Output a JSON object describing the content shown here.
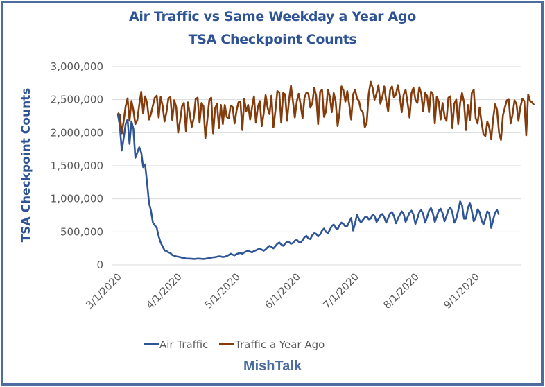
{
  "chart_data": {
    "type": "line",
    "title": "Air Traffic vs Same Weekday a Year Ago",
    "subtitle": "TSA Checkpoint Counts",
    "xlabel": "",
    "ylabel": "TSA Checkpoint Counts",
    "ylim": [
      0,
      3000000
    ],
    "yticks": [
      0,
      500000,
      1000000,
      1500000,
      2000000,
      2500000,
      3000000
    ],
    "ytick_labels": [
      "0",
      "500,000",
      "1,000,000",
      "1,500,000",
      "2,000,000",
      "2,500,000",
      "3,000,000"
    ],
    "xtick_labels": [
      "3/1/2020",
      "4/1/2020",
      "5/1/2020",
      "6/1/2020",
      "7/1/2020",
      "8/1/2020",
      "9/1/2020"
    ],
    "xtick_days": [
      0,
      31,
      61,
      92,
      122,
      153,
      184
    ],
    "x_range_days": [
      0,
      204
    ],
    "grid": true,
    "legend_position": "bottom",
    "series": [
      {
        "name": "Air Traffic",
        "color": "#2f5597",
        "day_step": 1,
        "values": [
          2280000,
          2100000,
          1730000,
          1920000,
          2130000,
          2200000,
          1830000,
          2170000,
          2060000,
          1620000,
          1700000,
          1780000,
          1700000,
          1480000,
          1520000,
          1240000,
          940000,
          820000,
          640000,
          600000,
          560000,
          430000,
          340000,
          280000,
          220000,
          210000,
          190000,
          180000,
          150000,
          140000,
          130000,
          125000,
          120000,
          110000,
          105000,
          98000,
          97000,
          95000,
          93000,
          90000,
          92000,
          96000,
          95000,
          92000,
          90000,
          93000,
          100000,
          105000,
          110000,
          115000,
          118000,
          125000,
          130000,
          128000,
          120000,
          125000,
          135000,
          150000,
          170000,
          155000,
          145000,
          165000,
          175000,
          180000,
          170000,
          190000,
          205000,
          215000,
          200000,
          190000,
          210000,
          220000,
          235000,
          250000,
          230000,
          215000,
          235000,
          265000,
          290000,
          275000,
          250000,
          285000,
          320000,
          340000,
          310000,
          290000,
          320000,
          355000,
          345000,
          320000,
          330000,
          365000,
          380000,
          350000,
          340000,
          375000,
          420000,
          440000,
          400000,
          390000,
          450000,
          480000,
          470000,
          430000,
          460000,
          520000,
          550000,
          500000,
          480000,
          530000,
          590000,
          610000,
          560000,
          540000,
          600000,
          640000,
          620000,
          580000,
          590000,
          650000,
          710000,
          520000,
          630000,
          760000,
          690000,
          640000,
          680000,
          720000,
          730000,
          690000,
          700000,
          760000,
          740000,
          650000,
          690000,
          750000,
          770000,
          720000,
          640000,
          710000,
          780000,
          800000,
          740000,
          630000,
          700000,
          760000,
          810000,
          770000,
          650000,
          720000,
          790000,
          820000,
          760000,
          620000,
          700000,
          800000,
          830000,
          770000,
          640000,
          720000,
          820000,
          860000,
          780000,
          650000,
          730000,
          820000,
          850000,
          780000,
          660000,
          740000,
          830000,
          870000,
          800000,
          640000,
          700000,
          820000,
          960000,
          900000,
          700000,
          700000,
          860000,
          940000,
          820000,
          660000,
          720000,
          840000,
          800000,
          680000,
          610000,
          700000,
          810000,
          780000,
          560000,
          680000,
          790000,
          830000,
          760000
        ],
        "x_start_day": 0
      },
      {
        "name": "Traffic a Year Ago",
        "color": "#843c0c",
        "day_step": 1,
        "values": [
          2300000,
          2270000,
          1990000,
          2180000,
          2400000,
          2520000,
          2180000,
          2480000,
          2340000,
          2130000,
          2190000,
          2420000,
          2620000,
          2290000,
          2550000,
          2450000,
          2200000,
          2280000,
          2410000,
          2530000,
          2560000,
          2230000,
          2540000,
          2410000,
          2170000,
          2310000,
          2520000,
          2540000,
          2190000,
          2490000,
          2390000,
          2000000,
          2180000,
          2400000,
          2450000,
          2020000,
          2460000,
          2280000,
          2090000,
          2220000,
          2510000,
          2530000,
          2150000,
          2450000,
          2400000,
          1920000,
          2190000,
          2490000,
          2530000,
          1990000,
          2370000,
          2440000,
          2070000,
          2420000,
          2130000,
          2420000,
          2240000,
          2220000,
          2410000,
          2390000,
          2140000,
          2330000,
          2460000,
          2470000,
          2040000,
          2510000,
          2320000,
          2420000,
          2200000,
          2380000,
          2550000,
          2150000,
          2390000,
          2480000,
          2100000,
          2290000,
          2570000,
          2380000,
          2280000,
          2560000,
          2080000,
          2330000,
          2630000,
          2610000,
          2150000,
          2600000,
          2580000,
          2180000,
          2490000,
          2710000,
          2480000,
          2230000,
          2470000,
          2590000,
          2420000,
          2220000,
          2530000,
          2610000,
          2590000,
          2380000,
          2440000,
          2680000,
          2560000,
          2130000,
          2620000,
          2650000,
          2240000,
          2320000,
          2650000,
          2550000,
          2310000,
          2600000,
          2470000,
          2100000,
          2300000,
          2700000,
          2640000,
          2470000,
          2630000,
          2420000,
          2200000,
          2580000,
          2650000,
          2520000,
          2480000,
          2340000,
          2310000,
          2080000,
          2160000,
          2590000,
          2770000,
          2680000,
          2500000,
          2590000,
          2720000,
          2440000,
          2540000,
          2700000,
          2480000,
          2320000,
          2640000,
          2700000,
          2530000,
          2580000,
          2720000,
          2550000,
          2310000,
          2580000,
          2650000,
          2450000,
          2230000,
          2600000,
          2680000,
          2500000,
          2450000,
          2690000,
          2590000,
          2320000,
          2600000,
          2560000,
          2310000,
          2620000,
          2580000,
          2140000,
          2540000,
          2470000,
          2200000,
          2450000,
          2250000,
          2180000,
          2530000,
          2550000,
          2070000,
          2440000,
          2500000,
          2130000,
          2450000,
          2600000,
          2460000,
          2040000,
          2420000,
          2190000,
          2600000,
          2650000,
          2220000,
          2140000,
          2380000,
          2160000,
          1980000,
          1950000,
          2170000,
          2080000,
          1900000,
          2210000,
          2430000,
          2350000,
          2000000,
          1890000,
          2260000,
          2380000,
          2490000,
          2500000,
          2140000,
          2280000,
          2490000,
          2430000,
          2180000,
          2390000,
          2510000,
          2480000,
          1960000,
          2580000,
          2480000,
          2460000,
          2420000
        ],
        "x_start_day": 0
      }
    ]
  },
  "header": {
    "title": "Air Traffic vs Same Weekday a Year Ago",
    "subtitle": "TSA Checkpoint Counts"
  },
  "legend": {
    "items": [
      {
        "label": "Air Traffic",
        "color": "#2f5597"
      },
      {
        "label": "Traffic a Year Ago",
        "color": "#843c0c"
      }
    ]
  },
  "footer": {
    "brand": "MishTalk"
  },
  "colors": {
    "frame": "#4e6d9f",
    "title": "#2f5496",
    "grid": "#d9d9d9",
    "tick_text": "#595959"
  }
}
